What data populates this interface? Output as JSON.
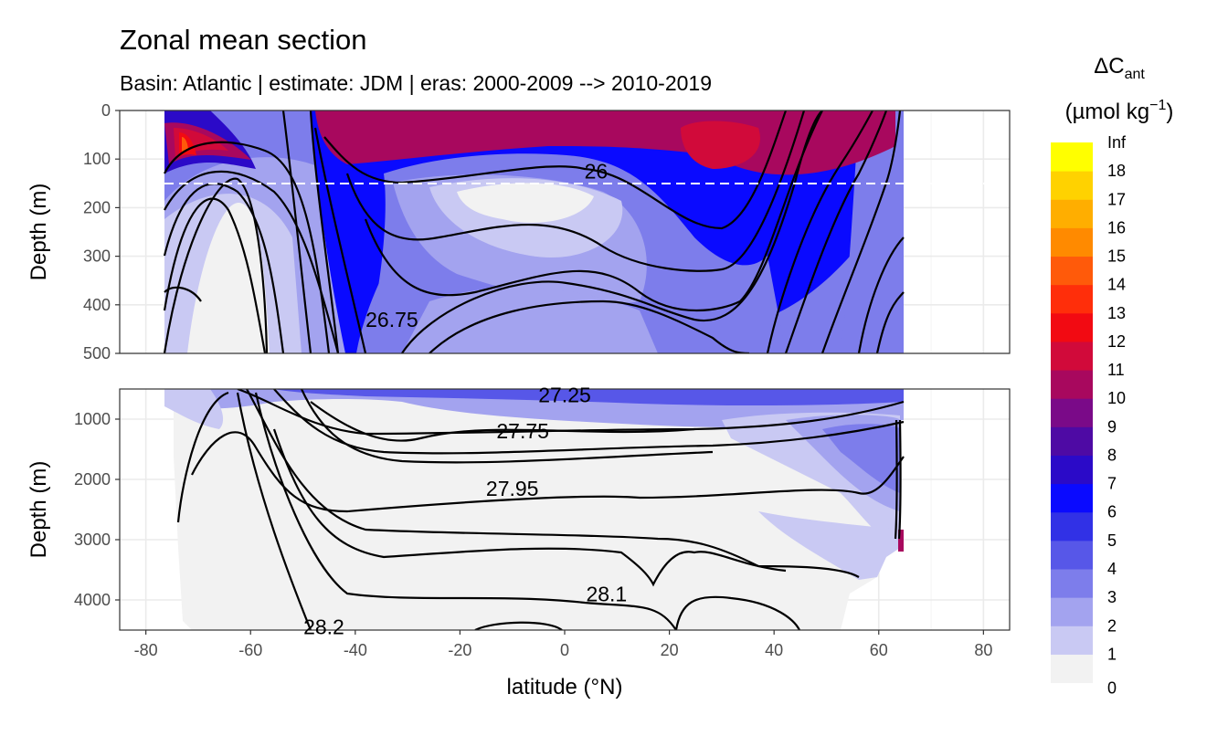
{
  "chart_data": {
    "type": "heatmap",
    "title": "Zonal mean section",
    "subtitle": "Basin: Atlantic | estimate: JDM  | eras: 2000-2009 --> 2010-2019",
    "xlabel": "latitude (°N)",
    "ylabel": "Depth (m)",
    "xlim": [
      -85,
      85
    ],
    "x_ticks": [
      -80,
      -60,
      -40,
      -20,
      0,
      20,
      40,
      60,
      80
    ],
    "data_lat_range": [
      -77,
      65
    ],
    "panels": [
      {
        "name": "upper",
        "ylim": [
          0,
          500
        ],
        "y_ticks": [
          0,
          100,
          200,
          300,
          400,
          500
        ],
        "reference_line_depth": 150
      },
      {
        "name": "lower",
        "ylim": [
          500,
          4500
        ],
        "y_ticks": [
          1000,
          2000,
          3000,
          4000
        ]
      }
    ],
    "legend": {
      "title_main": "ΔC",
      "title_sub": "ant",
      "unit_label": "(µmol kg",
      "unit_exp": "−1",
      "unit_close": ")",
      "breaks": [
        "0",
        "1",
        "2",
        "3",
        "4",
        "5",
        "6",
        "7",
        "8",
        "9",
        "10",
        "11",
        "12",
        "13",
        "14",
        "15",
        "16",
        "17",
        "18",
        "Inf"
      ],
      "colors": [
        "#f2f2f2",
        "#c9c9f3",
        "#a3a3ef",
        "#7d7deb",
        "#5757e8",
        "#3131e6",
        "#0a0aff",
        "#2b0ac8",
        "#4e0aa4",
        "#7a0a88",
        "#a8085e",
        "#d10a3a",
        "#f20a12",
        "#ff2e0a",
        "#ff5a0a",
        "#ff8a00",
        "#ffae00",
        "#ffd200",
        "#ffff00"
      ]
    },
    "contour_labels": [
      {
        "text": "26",
        "lat": 6,
        "depth": 125
      },
      {
        "text": "26.75",
        "lat": -33,
        "depth": 430
      },
      {
        "text": "27.25",
        "lat": 0,
        "depth": 600
      },
      {
        "text": "27.75",
        "lat": -8,
        "depth": 1200
      },
      {
        "text": "27.95",
        "lat": -10,
        "depth": 2150
      },
      {
        "text": "28.1",
        "lat": 8,
        "depth": 3900
      },
      {
        "text": "28.2",
        "lat": -46,
        "depth": 4450
      }
    ]
  }
}
